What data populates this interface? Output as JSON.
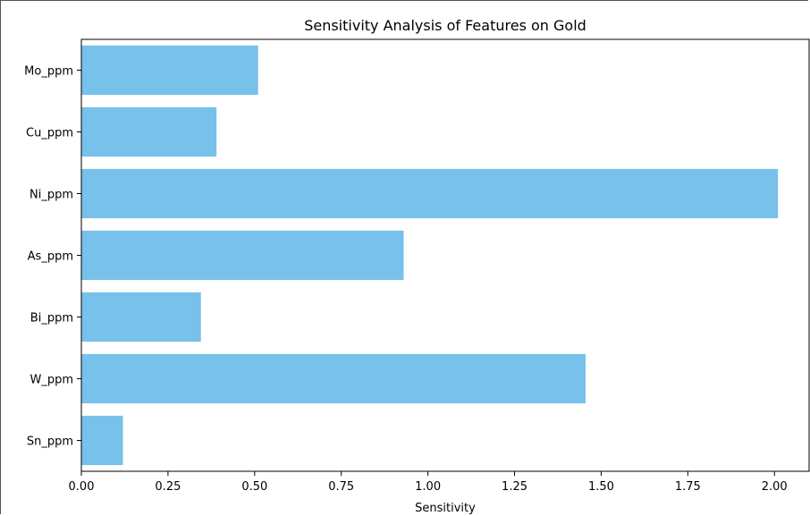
{
  "chart_data": {
    "type": "bar",
    "orientation": "horizontal",
    "title": "Sensitivity Analysis of Features on Gold",
    "xlabel": "Sensitivity",
    "ylabel": "",
    "categories": [
      "Mo_ppm",
      "Cu_ppm",
      "Ni_ppm",
      "As_ppm",
      "Bi_ppm",
      "W_ppm",
      "Sn_ppm"
    ],
    "values": [
      0.51,
      0.39,
      2.01,
      0.93,
      0.345,
      1.455,
      0.12
    ],
    "xlim": [
      0,
      2.1
    ],
    "xticks": [
      0.0,
      0.25,
      0.5,
      0.75,
      1.0,
      1.25,
      1.5,
      1.75,
      2.0
    ],
    "xtick_labels": [
      "0.00",
      "0.25",
      "0.50",
      "0.75",
      "1.00",
      "1.25",
      "1.50",
      "1.75",
      "2.00"
    ],
    "bar_color": "#77c1ea",
    "grid": false,
    "legend": "none"
  }
}
